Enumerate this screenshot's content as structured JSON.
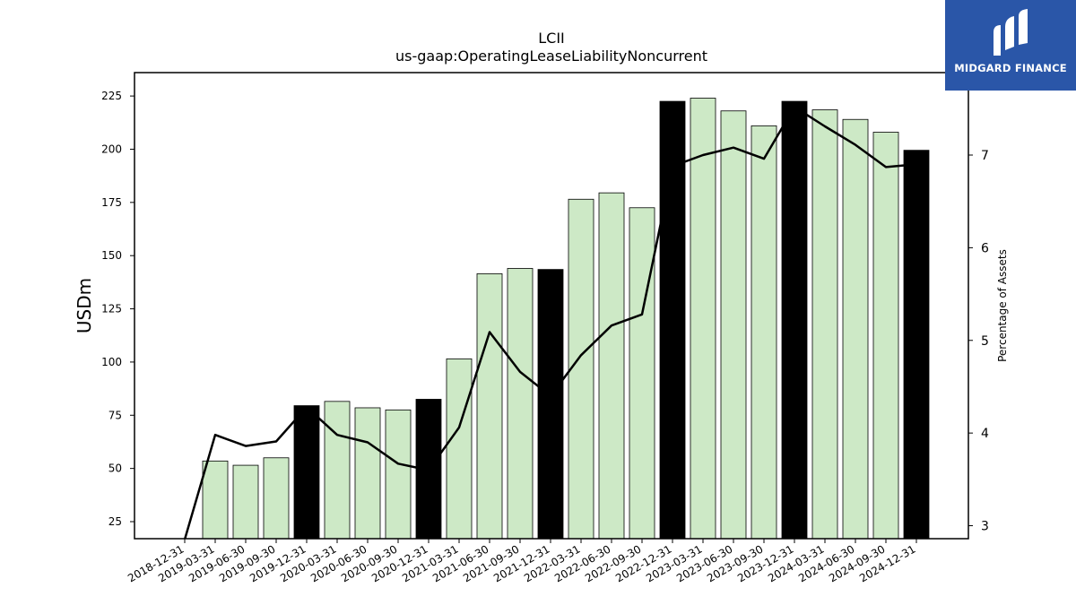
{
  "chart_data": {
    "type": "bar",
    "title": "LCII",
    "subtitle": "us-gaap:OperatingLeaseLiabilityNoncurrent",
    "ylabel": "USDm",
    "y2label": "Percentage of Assets",
    "ylim": [
      17,
      236
    ],
    "y2lim": [
      2.86,
      7.89
    ],
    "yticks": [
      25,
      50,
      75,
      100,
      125,
      150,
      175,
      200,
      225
    ],
    "y2ticks": [
      3,
      4,
      5,
      6,
      7
    ],
    "categories": [
      "2018-12-31",
      "2019-03-31",
      "2019-06-30",
      "2019-09-30",
      "2019-12-31",
      "2020-03-31",
      "2020-06-30",
      "2020-09-30",
      "2020-12-31",
      "2021-03-31",
      "2021-06-30",
      "2021-09-30",
      "2021-12-31",
      "2022-03-31",
      "2022-06-30",
      "2022-09-30",
      "2022-12-31",
      "2023-03-31",
      "2023-06-30",
      "2023-09-30",
      "2023-12-31",
      "2024-03-31",
      "2024-06-30",
      "2024-09-30",
      "2024-12-31"
    ],
    "series": [
      {
        "kind": "bar",
        "values": [
          null,
          53.5,
          51.5,
          55.0,
          79.5,
          81.5,
          78.5,
          77.5,
          82.5,
          101.5,
          141.5,
          144.0,
          143.5,
          176.5,
          179.5,
          172.5,
          222.5,
          224.0,
          218.0,
          211.0,
          222.5,
          218.5,
          214.0,
          208.0,
          199.5
        ],
        "highlight": [
          false,
          false,
          false,
          false,
          true,
          false,
          false,
          false,
          true,
          false,
          false,
          false,
          true,
          false,
          false,
          false,
          true,
          false,
          false,
          false,
          true,
          false,
          false,
          false,
          true
        ],
        "color": "#cde9c6",
        "highlight_color": "#000000"
      },
      {
        "kind": "line",
        "axis": "right",
        "values": [
          2.85,
          3.98,
          3.86,
          3.91,
          4.28,
          3.98,
          3.9,
          3.67,
          3.6,
          4.06,
          5.09,
          4.66,
          4.4,
          4.84,
          5.16,
          5.28,
          6.88,
          7.0,
          7.08,
          6.96,
          7.52,
          7.31,
          7.11,
          6.87,
          6.9
        ],
        "color": "#000000"
      }
    ],
    "grid": false,
    "legend": "none"
  },
  "logo": {
    "text": "MIDGARD FINANCE",
    "bg_color": "#2a56a8",
    "icon": "midgard-logo-icon"
  }
}
